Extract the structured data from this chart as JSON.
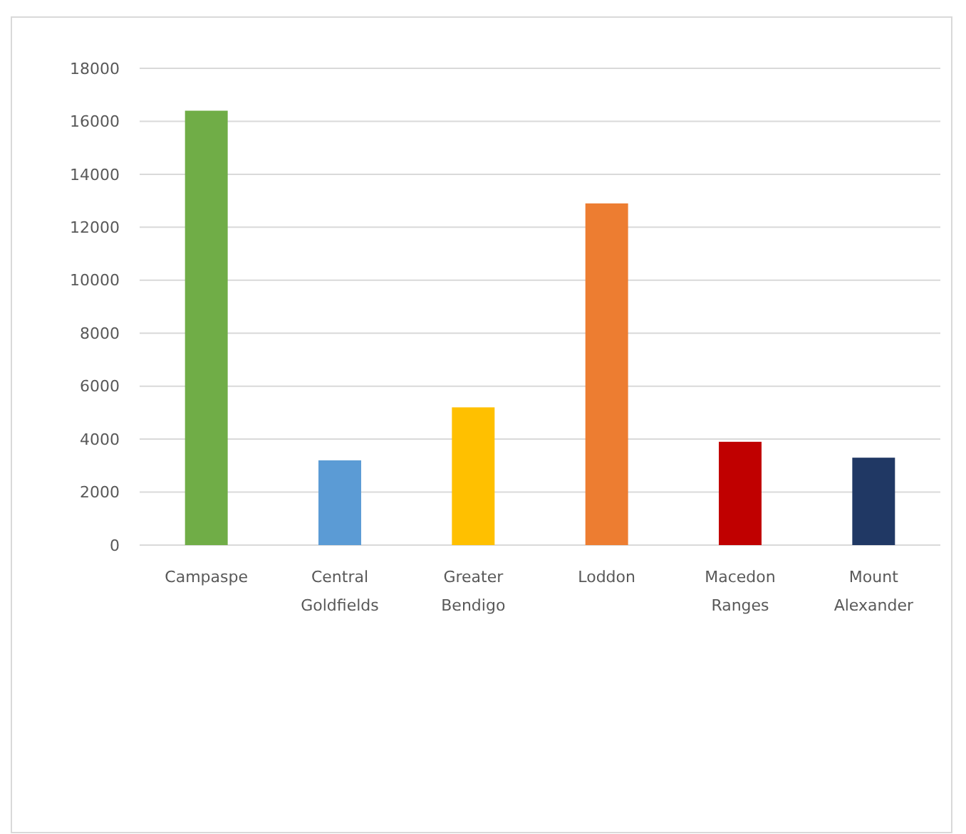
{
  "chart_data": {
    "type": "bar",
    "categories": [
      "Campaspe",
      "Central Goldfields",
      "Greater Bendigo",
      "Loddon",
      "Macedon Ranges",
      "Mount Alexander"
    ],
    "values": [
      16400,
      3200,
      5200,
      12900,
      3900,
      3300
    ],
    "colors": [
      "#70ad47",
      "#5b9bd5",
      "#ffc000",
      "#ed7d31",
      "#c00000",
      "#203864"
    ],
    "ylim": [
      0,
      18000
    ],
    "yticks": [
      0,
      2000,
      4000,
      6000,
      8000,
      10000,
      12000,
      14000,
      16000,
      18000
    ],
    "grid": "y"
  }
}
